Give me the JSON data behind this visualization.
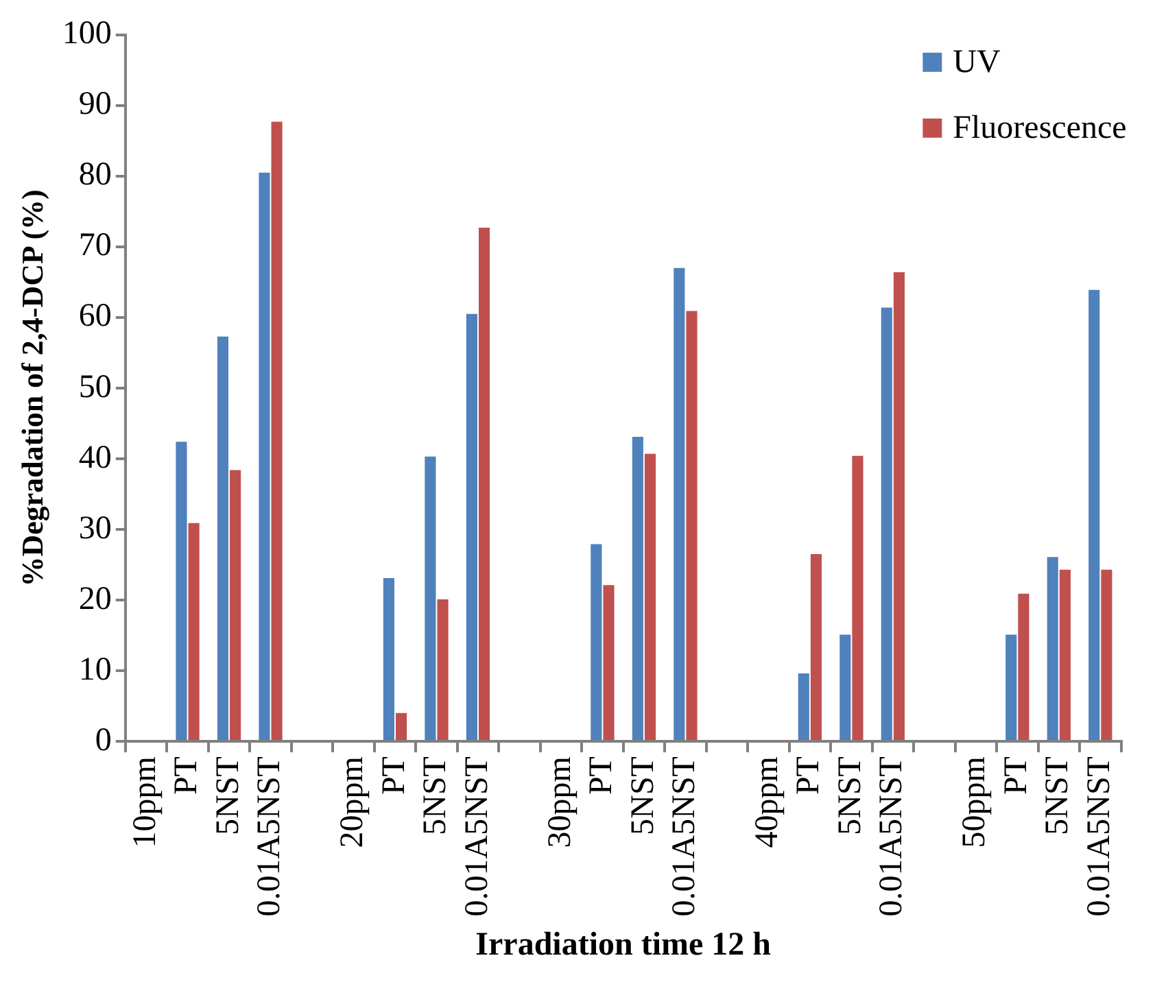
{
  "chart_data": {
    "type": "bar",
    "xlabel": "Irradiation time 12 h",
    "ylabel": "%Degradation of 2,4-DCP (%)",
    "categories": [
      "10ppm",
      "PT",
      "5NST",
      "0.01A5NST",
      null,
      "20ppm",
      "PT",
      "5NST",
      "0.01A5NST",
      null,
      "30ppm",
      "PT",
      "5NST",
      "0.01A5NST",
      null,
      "40ppm",
      "PT",
      "5NST",
      "0.01A5NST",
      null,
      "50ppm",
      "PT",
      "5NST",
      "0.01A5NST"
    ],
    "series": [
      {
        "name": "UV",
        "color": "#4f81bd",
        "values": [
          null,
          42.5,
          57.4,
          80.6,
          null,
          null,
          23.2,
          40.4,
          60.6,
          null,
          null,
          28.0,
          43.2,
          67.1,
          null,
          null,
          9.7,
          15.2,
          61.5,
          null,
          null,
          15.2,
          26.2,
          64.0
        ]
      },
      {
        "name": "Fluorescence",
        "color": "#c0504d",
        "values": [
          null,
          31.0,
          38.5,
          87.8,
          null,
          null,
          4.1,
          20.2,
          72.8,
          null,
          null,
          22.2,
          40.8,
          61.0,
          null,
          null,
          26.6,
          40.5,
          66.5,
          null,
          null,
          21.0,
          24.4,
          24.4
        ]
      }
    ],
    "ylim": [
      0,
      100
    ],
    "yticks": [
      0,
      10,
      20,
      30,
      40,
      50,
      60,
      70,
      80,
      90,
      100
    ],
    "grid": false,
    "legend": "top right"
  }
}
